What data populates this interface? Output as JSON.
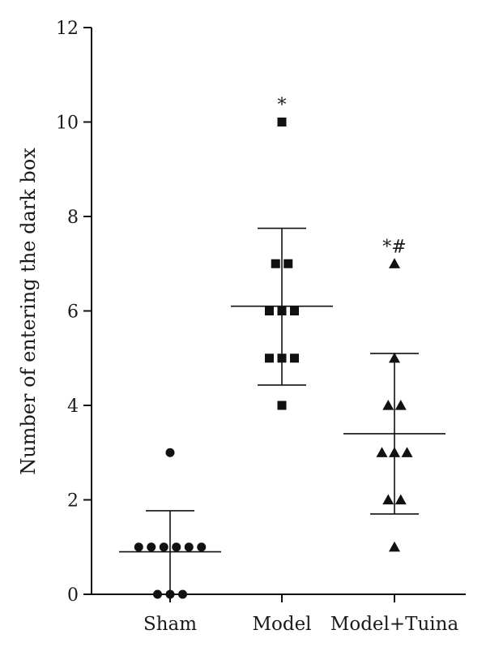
{
  "chart_data": {
    "type": "scatter",
    "title": "",
    "xlabel": "",
    "ylabel": "Number of entering the dark box",
    "ylim": [
      0,
      12
    ],
    "yticks": [
      0,
      2,
      4,
      6,
      8,
      10,
      12
    ],
    "grid": false,
    "categories": [
      "Sham",
      "Model",
      "Model+Tuina"
    ],
    "groups": [
      {
        "category": "Sham",
        "marker": "circle",
        "points": [
          3,
          1,
          1,
          1,
          1,
          1,
          1,
          0,
          0,
          0
        ],
        "mean": 0.9,
        "sd_upper": 1.77,
        "sd_lower": 0,
        "annotation": ""
      },
      {
        "category": "Model",
        "marker": "square",
        "points": [
          10,
          7,
          7,
          6,
          6,
          6,
          5,
          5,
          5,
          4
        ],
        "mean": 6.1,
        "sd_upper": 7.75,
        "sd_lower": 4.43,
        "annotation": "*"
      },
      {
        "category": "Model+Tuina",
        "marker": "triangle",
        "points": [
          7,
          5,
          4,
          4,
          3,
          3,
          3,
          2,
          2,
          1
        ],
        "mean": 3.4,
        "sd_upper": 5.1,
        "sd_lower": 1.7,
        "annotation": "*#"
      }
    ]
  }
}
